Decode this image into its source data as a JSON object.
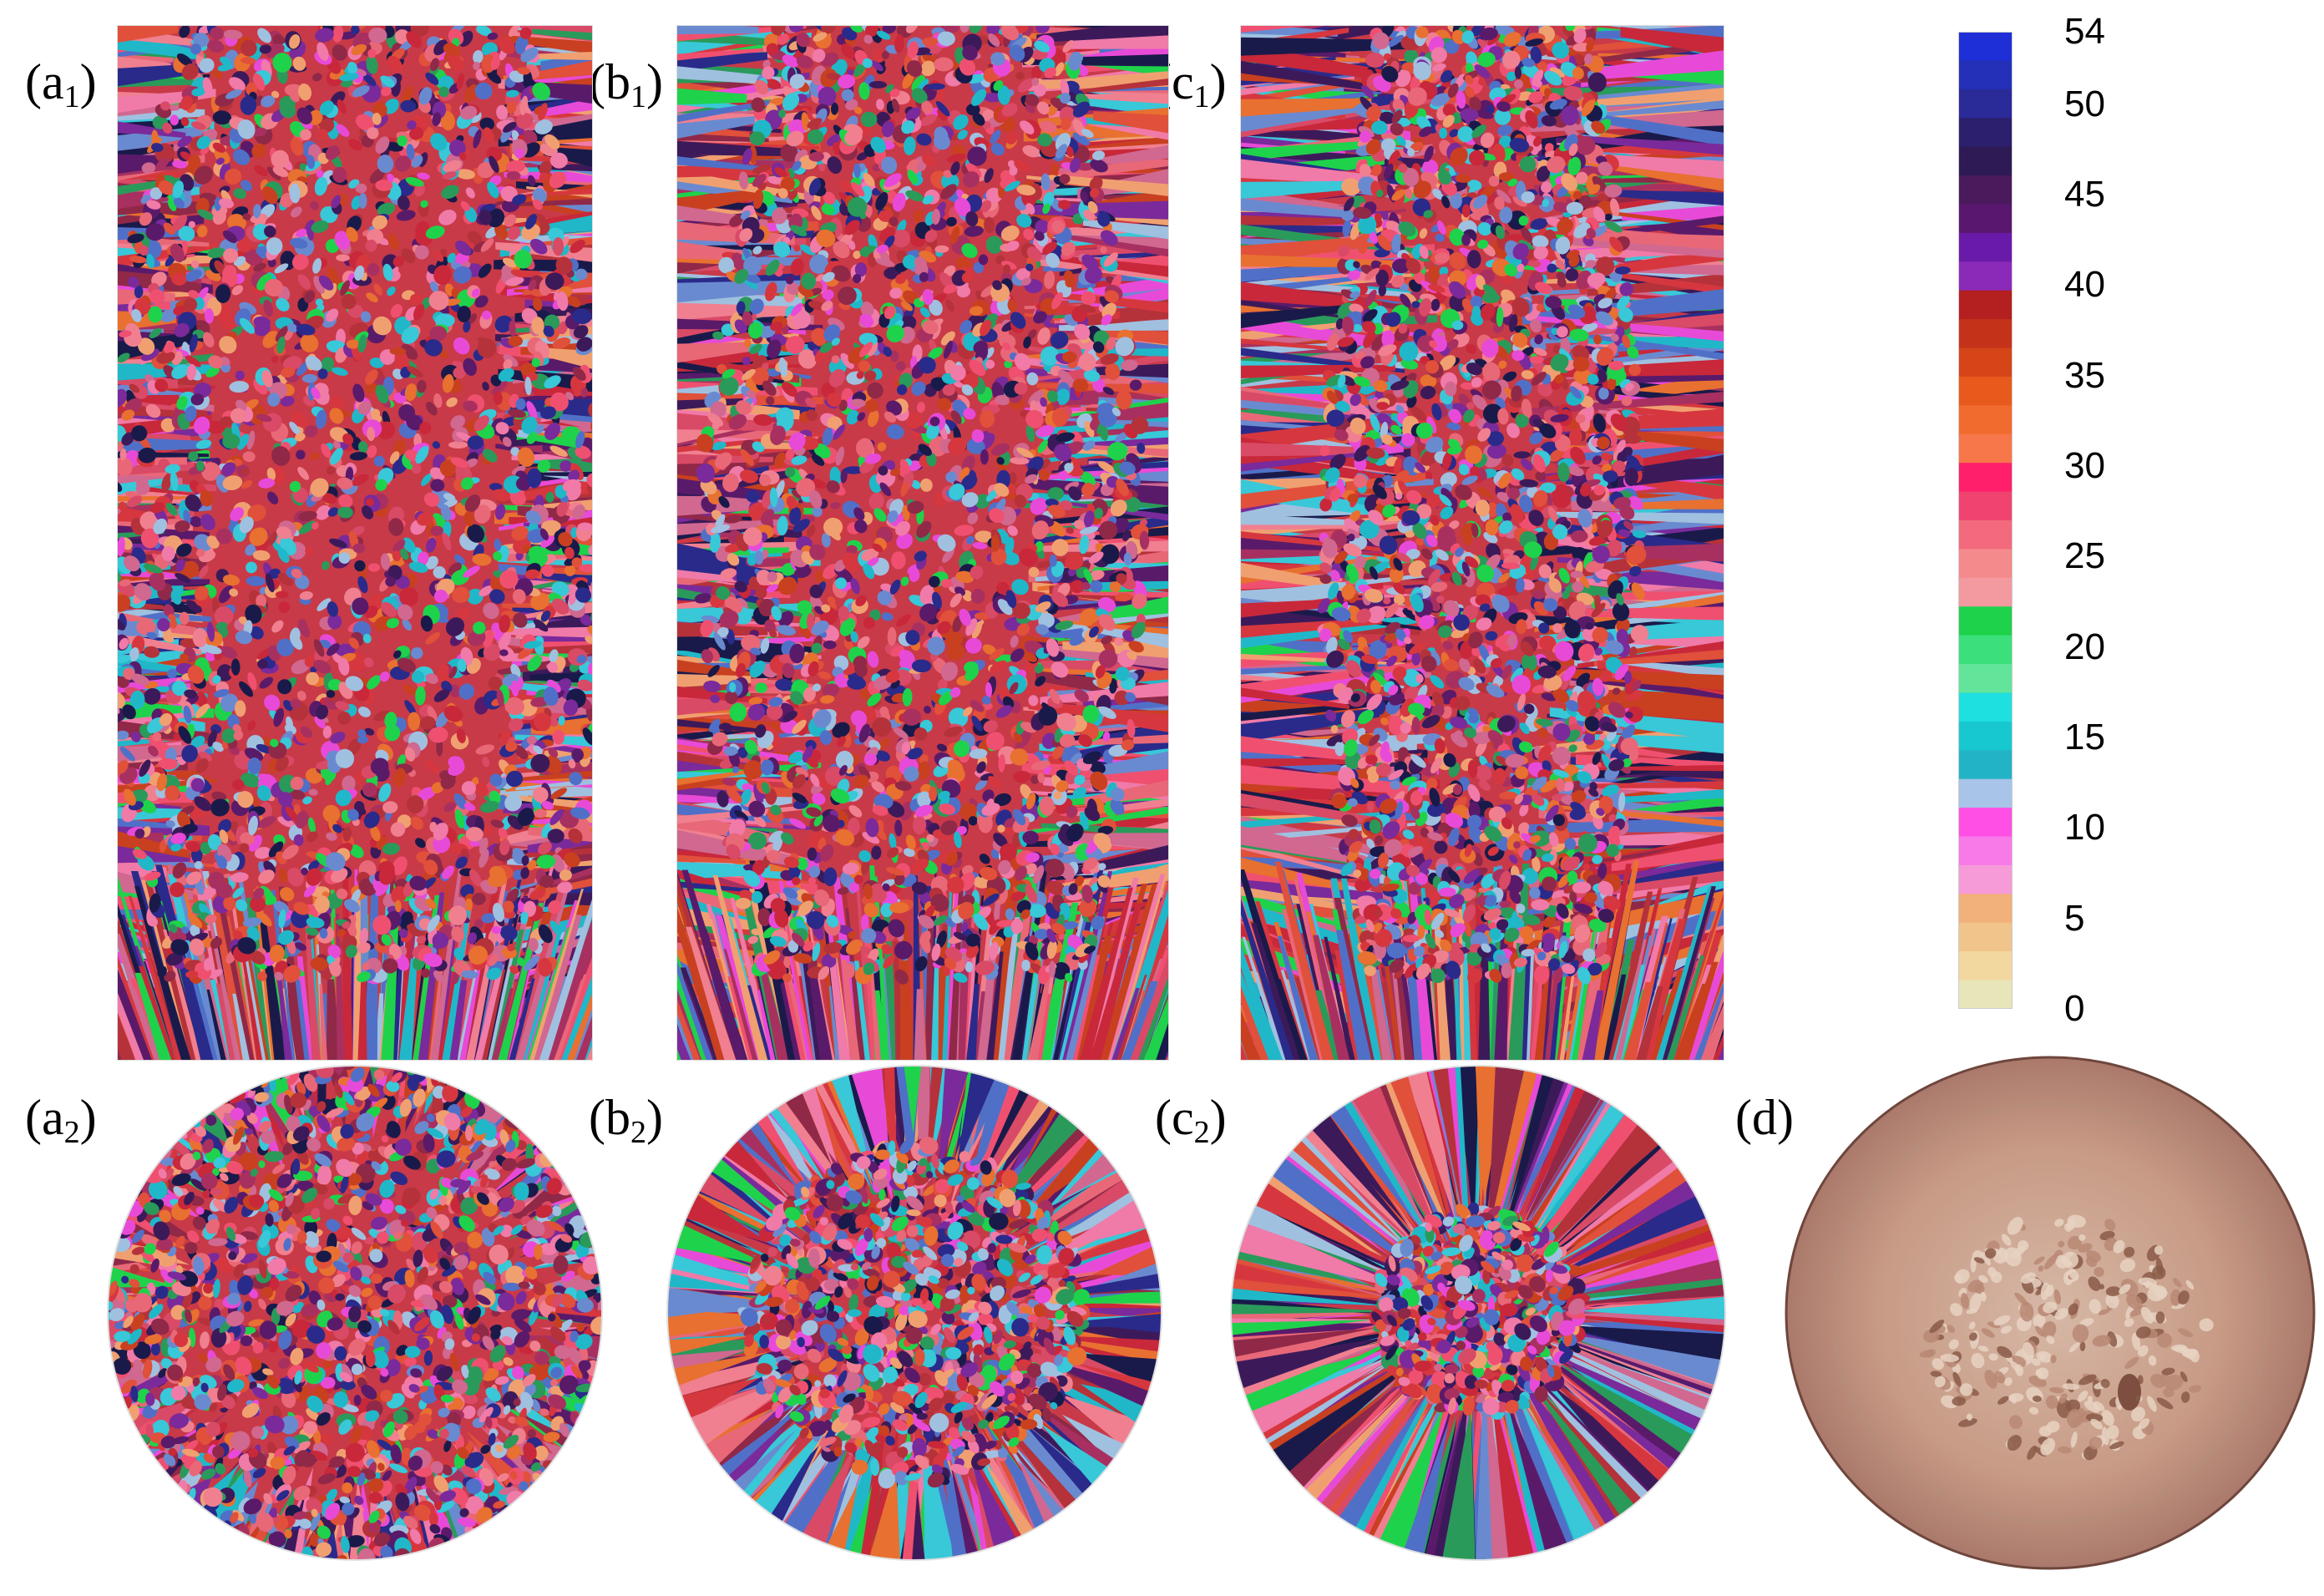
{
  "panels": [
    {
      "id": "a1",
      "label": "(a",
      "sub": "1",
      "close": ")",
      "shape": "rect",
      "seed": 11,
      "core": 0.36
    },
    {
      "id": "b1",
      "label": "(b",
      "sub": "1",
      "close": ")",
      "shape": "rect",
      "seed": 23,
      "core": 0.3
    },
    {
      "id": "c1",
      "label": "(c",
      "sub": "1",
      "close": ")",
      "shape": "rect",
      "seed": 37,
      "core": 0.22
    },
    {
      "id": "a2",
      "label": "(a",
      "sub": "2",
      "close": ")",
      "shape": "circle",
      "seed": 41,
      "core": 0.92
    },
    {
      "id": "b2",
      "label": "(b",
      "sub": "2",
      "close": ")",
      "shape": "circle",
      "seed": 53,
      "core": 0.62
    },
    {
      "id": "c2",
      "label": "(c",
      "sub": "2",
      "close": ")",
      "shape": "circle",
      "seed": 67,
      "core": 0.38
    },
    {
      "id": "d",
      "label": "(d)",
      "sub": "",
      "close": "",
      "shape": "photo",
      "seed": 79,
      "core": 0.5
    }
  ],
  "colorbar": {
    "ticks": [
      "54",
      "50",
      "45",
      "40",
      "35",
      "30",
      "25",
      "20",
      "15",
      "10",
      "5",
      "0"
    ],
    "min": 0,
    "max": 54,
    "colors": [
      "#1f2fd8",
      "#2430b8",
      "#2a2a98",
      "#2b1f6e",
      "#2e1a55",
      "#4a1a5c",
      "#5a1770",
      "#6a1aa8",
      "#8b2ab9",
      "#b41f1f",
      "#c4321a",
      "#d64518",
      "#e85a1c",
      "#f26b2e",
      "#f7764a",
      "#ff1f6a",
      "#f0436f",
      "#f26a7c",
      "#f58a8c",
      "#f29aa0",
      "#1fd24b",
      "#3be07a",
      "#62e59a",
      "#1fe0e0",
      "#18c8d0",
      "#22b3c6",
      "#a8c4e8",
      "#ff4fe4",
      "#f77ae8",
      "#f79ad8",
      "#f2b07a",
      "#f0c48a",
      "#f2d89e",
      "#e8e6b8"
    ]
  },
  "palette": [
    "#c8283a",
    "#d6373f",
    "#e0503a",
    "#b5323a",
    "#d94a66",
    "#e86878",
    "#f08090",
    "#5a1a6a",
    "#3c1a5a",
    "#7a2a9a",
    "#2a2a8a",
    "#1a1a4a",
    "#2a9a5a",
    "#1fd24b",
    "#20b8c8",
    "#38c8d8",
    "#e84ad8",
    "#f07aa8",
    "#f0a070",
    "#e87030",
    "#c84020",
    "#a83060",
    "#902848",
    "#f05070",
    "#5070c8",
    "#6a8ad0",
    "#d06890",
    "#a0c0e0"
  ]
}
